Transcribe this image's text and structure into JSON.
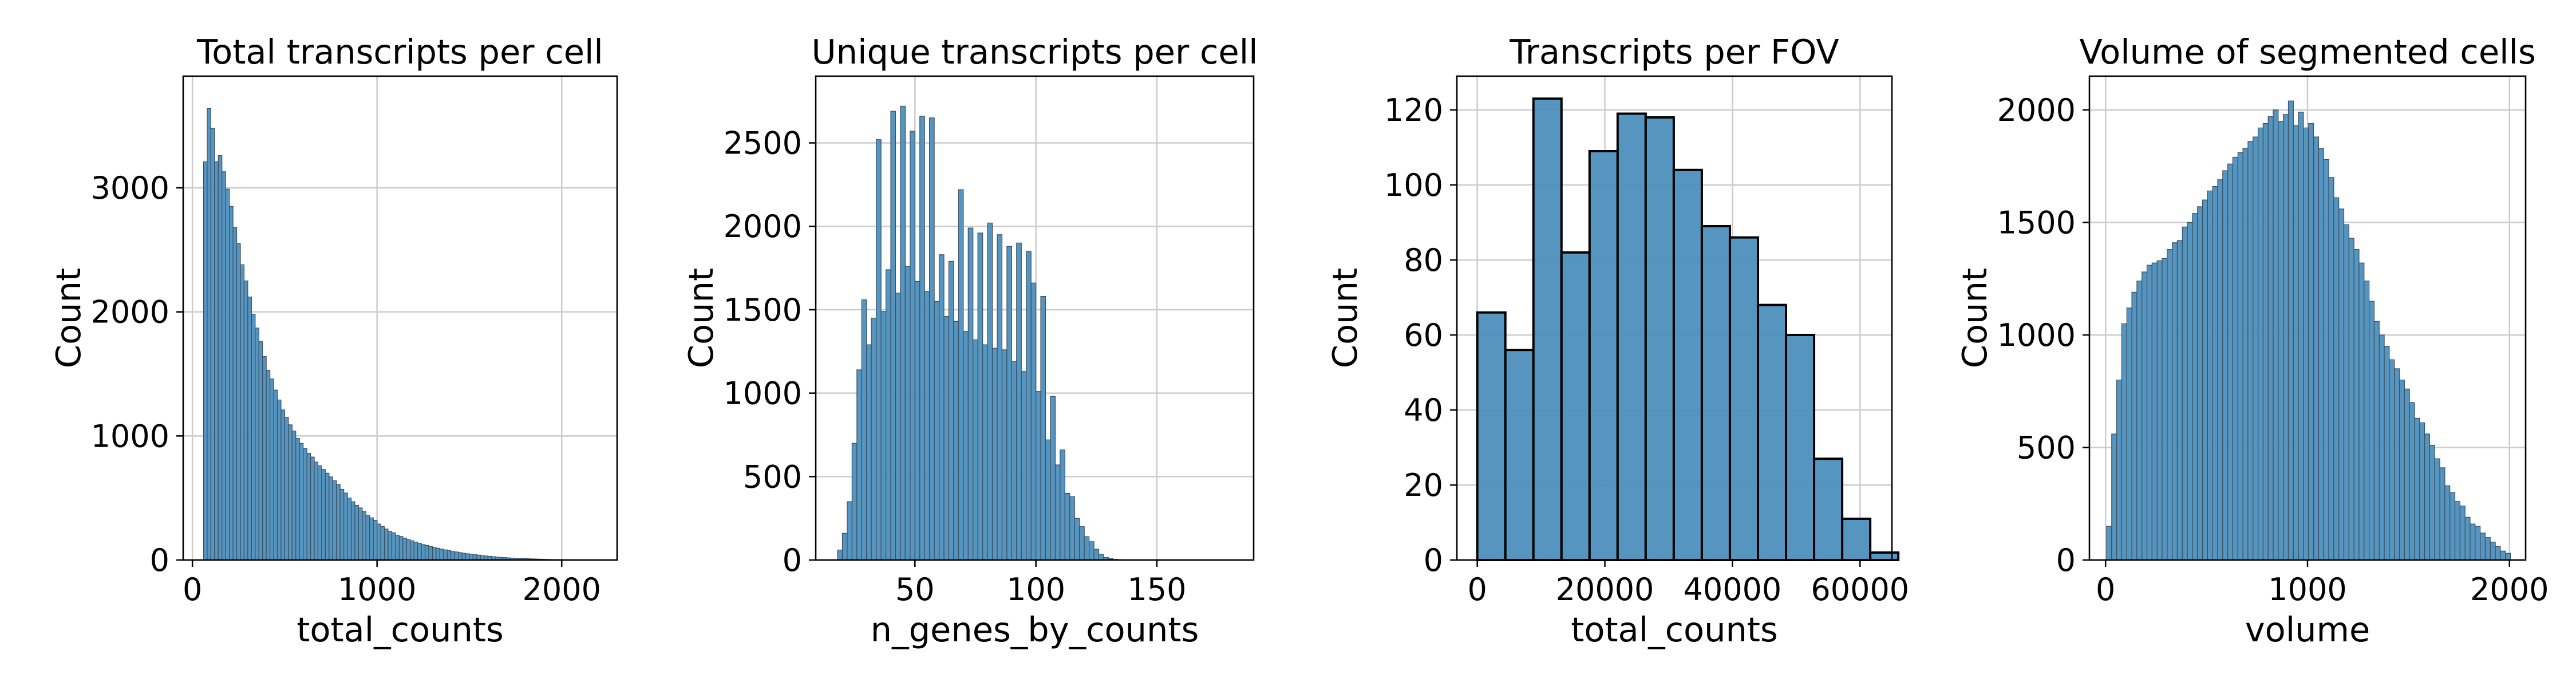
{
  "figure": {
    "background": "#ffffff",
    "bar_color": "#4c8fbc",
    "bar_edge": "#3a4f62",
    "grid_color": "#cccccc"
  },
  "chart_data": [
    {
      "type": "histogram",
      "title": "Total transcripts per cell",
      "xlabel": "total_counts",
      "ylabel": "Count",
      "grid": true,
      "xlim": [
        -50,
        2300
      ],
      "ylim": [
        0,
        3900
      ],
      "xticks": [
        0,
        1000,
        2000
      ],
      "yticks": [
        0,
        1000,
        2000,
        3000
      ],
      "bin_width": 20,
      "bin_start": 60,
      "values": [
        3210,
        3640,
        3480,
        3210,
        3260,
        3130,
        2990,
        2850,
        2680,
        2550,
        2380,
        2250,
        2120,
        1980,
        1870,
        1760,
        1640,
        1530,
        1460,
        1370,
        1290,
        1210,
        1150,
        1090,
        1040,
        980,
        940,
        900,
        860,
        830,
        790,
        760,
        730,
        700,
        670,
        640,
        610,
        570,
        540,
        500,
        470,
        440,
        420,
        390,
        360,
        340,
        320,
        290,
        270,
        250,
        230,
        220,
        200,
        190,
        175,
        165,
        155,
        145,
        135,
        125,
        118,
        110,
        102,
        95,
        88,
        82,
        76,
        70,
        65,
        60,
        55,
        51,
        47,
        43,
        40,
        36,
        33,
        30,
        27,
        24,
        22,
        20,
        18,
        16,
        14,
        13,
        12,
        11,
        10,
        9,
        8,
        7,
        6,
        5,
        4,
        4,
        3,
        3,
        2,
        2,
        2,
        1,
        1,
        1,
        1,
        1,
        1
      ]
    },
    {
      "type": "histogram",
      "title": "Unique transcripts per cell",
      "xlabel": "n_genes_by_counts",
      "ylabel": "Count",
      "grid": true,
      "xlim": [
        9,
        190
      ],
      "ylim": [
        0,
        2900
      ],
      "xticks": [
        50,
        100,
        150
      ],
      "yticks": [
        0,
        500,
        1000,
        1500,
        2000,
        2500
      ],
      "bin_width": 2,
      "bin_start": 18,
      "values": [
        60,
        160,
        350,
        700,
        1140,
        1560,
        1290,
        1450,
        2520,
        1490,
        1740,
        2690,
        1600,
        2720,
        1760,
        2570,
        1670,
        2660,
        1610,
        2650,
        1550,
        1830,
        1460,
        1790,
        1430,
        2220,
        1370,
        1990,
        1320,
        1960,
        1290,
        2020,
        1270,
        1950,
        1260,
        1880,
        1190,
        1900,
        1130,
        1850,
        1660,
        1010,
        1580,
        720,
        980,
        570,
        660,
        400,
        380,
        250,
        200,
        140,
        110,
        65,
        35,
        15,
        8,
        4,
        2,
        1
      ]
    },
    {
      "type": "histogram",
      "title": "Transcripts per FOV",
      "xlabel": "total_counts",
      "ylabel": "Count",
      "grid": true,
      "xlim": [
        -3200,
        65000
      ],
      "ylim": [
        0,
        129
      ],
      "xticks": [
        0,
        20000,
        40000,
        60000
      ],
      "yticks": [
        0,
        20,
        40,
        60,
        80,
        100,
        120
      ],
      "bin_width": 4400,
      "bin_start": 0,
      "values": [
        66,
        56,
        123,
        82,
        109,
        119,
        118,
        104,
        89,
        86,
        68,
        60,
        27,
        11,
        2
      ]
    },
    {
      "type": "histogram",
      "title": "Volume of segmented cells",
      "xlabel": "volume",
      "ylabel": "Count",
      "grid": true,
      "xlim": [
        -80,
        2080
      ],
      "ylim": [
        0,
        2150
      ],
      "xticks": [
        0,
        1000,
        2000
      ],
      "yticks": [
        0,
        500,
        1000,
        1500,
        2000
      ],
      "bin_width": 25,
      "bin_start": 5,
      "values": [
        150,
        560,
        800,
        1050,
        1120,
        1190,
        1240,
        1280,
        1310,
        1320,
        1330,
        1340,
        1380,
        1410,
        1420,
        1480,
        1500,
        1540,
        1570,
        1600,
        1640,
        1660,
        1690,
        1730,
        1760,
        1790,
        1810,
        1830,
        1860,
        1880,
        1920,
        1940,
        1970,
        2000,
        1950,
        1980,
        2040,
        1930,
        1990,
        1920,
        1940,
        1880,
        1830,
        1780,
        1700,
        1610,
        1560,
        1490,
        1430,
        1380,
        1320,
        1240,
        1150,
        1060,
        1000,
        950,
        890,
        850,
        800,
        760,
        700,
        630,
        610,
        560,
        510,
        450,
        410,
        330,
        300,
        260,
        240,
        190,
        160,
        150,
        120,
        100,
        80,
        60,
        40,
        30
      ]
    }
  ]
}
